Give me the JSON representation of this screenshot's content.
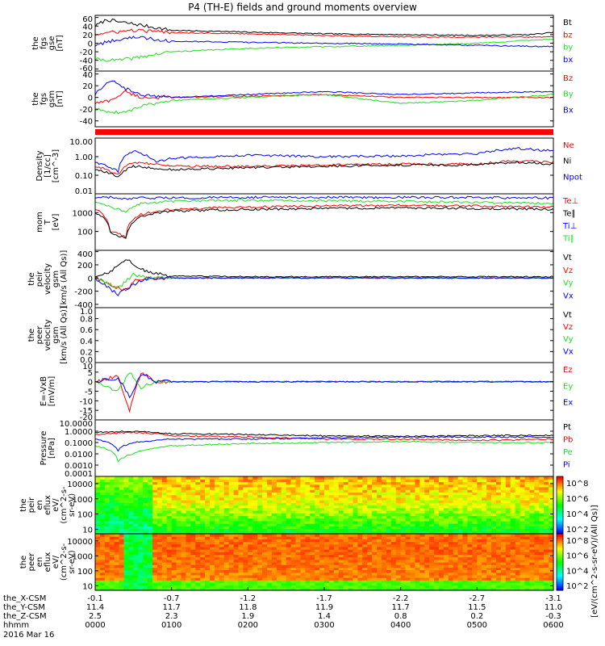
{
  "title": "P4 (TH-E) fields and ground moments overview",
  "footer": "2016 Mar 16",
  "colors": {
    "black": "#000000",
    "red": "#ff0000",
    "green": "#22dd22",
    "blue": "#0000ff"
  },
  "chart_data": {
    "type": "line",
    "time_axis": {
      "row_labels": [
        "the_X-CSM",
        "the_Y-CSM",
        "the_Z-CSM",
        "hhmm"
      ],
      "ticks": [
        {
          "x": "-0.1",
          "y": "11.4",
          "z": "2.5",
          "t": "0000"
        },
        {
          "x": "-0.7",
          "y": "11.7",
          "z": "2.3",
          "t": "0100"
        },
        {
          "x": "-1.2",
          "y": "11.8",
          "z": "1.9",
          "t": "0200"
        },
        {
          "x": "-1.7",
          "y": "11.9",
          "z": "1.4",
          "t": "0300"
        },
        {
          "x": "-2.2",
          "y": "11.7",
          "z": "0.8",
          "t": "0400"
        },
        {
          "x": "-2.7",
          "y": "11.5",
          "z": "0.2",
          "t": "0500"
        },
        {
          "x": "-3.1",
          "y": "11.0",
          "z": "-0.3",
          "t": "0600"
        }
      ]
    },
    "panels": [
      {
        "id": "fgs-gse",
        "ylabel": [
          "the",
          "fgs",
          "gse",
          "[nT]"
        ],
        "scale": "linear",
        "ylim": [
          -65,
          65
        ],
        "ticks": [
          "60",
          "40",
          "20",
          "0",
          "-20",
          "-40",
          "-60"
        ],
        "legend": [
          {
            "name": "Bt",
            "color": "black"
          },
          {
            "name": "bz",
            "color": "red"
          },
          {
            "name": "by",
            "color": "green"
          },
          {
            "name": "bx",
            "color": "blue"
          }
        ],
        "series": [
          {
            "name": "Bt",
            "color": "black",
            "t": [
              0,
              0.1,
              0.15,
              0.3,
              0.5,
              1.0,
              2.0,
              3.0,
              4.0,
              5.0,
              5.7,
              6.0
            ],
            "v": [
              40,
              50,
              55,
              50,
              45,
              30,
              26,
              22,
              20,
              18,
              20,
              25
            ]
          },
          {
            "name": "bz",
            "color": "red",
            "t": [
              0,
              0.2,
              0.5,
              1.0,
              2.0,
              3.0,
              4.0,
              5.0,
              6.0
            ],
            "v": [
              20,
              25,
              30,
              25,
              22,
              18,
              15,
              14,
              15
            ]
          },
          {
            "name": "by",
            "color": "green",
            "t": [
              0,
              0.3,
              0.5,
              1.0,
              2.0,
              3.0,
              4.0,
              5.0,
              6.0
            ],
            "v": [
              -38,
              -40,
              -35,
              -20,
              -12,
              -8,
              -5,
              0,
              10
            ]
          },
          {
            "name": "bx",
            "color": "blue",
            "t": [
              0,
              0.2,
              0.5,
              1.0,
              2.0,
              3.0,
              4.0,
              5.0,
              6.0
            ],
            "v": [
              -5,
              5,
              15,
              5,
              2,
              0,
              -2,
              -5,
              -8
            ]
          }
        ]
      },
      {
        "id": "fgs-gsm",
        "ylabel": [
          "the",
          "fgs",
          "gsm",
          "[nT]"
        ],
        "scale": "linear",
        "ylim": [
          -50,
          45
        ],
        "ticks": [
          "40",
          "20",
          "0",
          "-20",
          "-40"
        ],
        "legend": [
          {
            "name": "Bz",
            "color": "red"
          },
          {
            "name": "By",
            "color": "green"
          },
          {
            "name": "Bx",
            "color": "blue"
          }
        ],
        "series": [
          {
            "name": "Bz",
            "color": "red",
            "t": [
              0,
              0.2,
              0.4,
              0.6,
              1.0,
              2.0,
              3.0,
              4.0,
              5.0,
              6.0
            ],
            "v": [
              -10,
              -5,
              10,
              0,
              0,
              2,
              5,
              0,
              0,
              0
            ]
          },
          {
            "name": "By",
            "color": "green",
            "t": [
              0,
              0.2,
              0.4,
              0.6,
              1.0,
              2.0,
              3.0,
              4.0,
              5.0,
              6.0
            ],
            "v": [
              -20,
              -25,
              -25,
              -15,
              -5,
              0,
              5,
              -10,
              -5,
              5
            ]
          },
          {
            "name": "Bx",
            "color": "blue",
            "t": [
              0,
              0.1,
              0.2,
              0.4,
              0.6,
              1.0,
              2.0,
              3.0,
              4.0,
              5.0,
              6.0
            ],
            "v": [
              5,
              20,
              30,
              15,
              5,
              0,
              5,
              10,
              5,
              8,
              10
            ]
          }
        ]
      },
      {
        "id": "density",
        "ylabel": [
          "Density",
          "[1/cc]",
          "[cm^-3]"
        ],
        "scale": "log",
        "ylim": [
          0.01,
          10
        ],
        "ticks": [
          "10.00",
          "1.00",
          "0.10",
          "0.01"
        ],
        "legend": [
          {
            "name": "Ne",
            "color": "red"
          },
          {
            "name": "Ni",
            "color": "black"
          },
          {
            "name": "Npot",
            "color": "blue"
          }
        ],
        "series": [
          {
            "name": "Npot",
            "color": "blue",
            "t": [
              0,
              0.3,
              0.5,
              0.8,
              1.0,
              2.0,
              3.0,
              4.0,
              4.5,
              5.0,
              5.5,
              6.0
            ],
            "v": [
              0.5,
              0.15,
              2.0,
              0.5,
              0.8,
              1.2,
              1.0,
              1.1,
              1.3,
              1.4,
              2.8,
              2.0
            ]
          },
          {
            "name": "Ne",
            "color": "red",
            "t": [
              0,
              0.3,
              0.5,
              1.0,
              2.0,
              3.0,
              4.0,
              5.0,
              5.5,
              6.0
            ],
            "v": [
              0.3,
              0.1,
              0.5,
              0.3,
              0.3,
              0.35,
              0.4,
              0.4,
              0.6,
              0.5
            ]
          },
          {
            "name": "Ni",
            "color": "black",
            "t": [
              0,
              0.3,
              0.5,
              1.0,
              2.0,
              3.0,
              4.0,
              5.0,
              5.5,
              6.0
            ],
            "v": [
              0.2,
              0.08,
              0.3,
              0.2,
              0.25,
              0.3,
              0.35,
              0.35,
              0.5,
              0.4
            ]
          }
        ]
      },
      {
        "id": "temperature",
        "ylabel": [
          "mom",
          "T",
          "[eV]"
        ],
        "scale": "log",
        "ylim": [
          10,
          10000
        ],
        "ticks": [
          "1000",
          "100"
        ],
        "legend": [
          {
            "name": "Te⊥",
            "color": "red"
          },
          {
            "name": "Te∥",
            "color": "black"
          },
          {
            "name": "Ti⊥",
            "color": "blue"
          },
          {
            "name": "Ti∥",
            "color": "green"
          }
        ],
        "series": [
          {
            "name": "Ti⊥",
            "color": "blue",
            "t": [
              0,
              0.2,
              0.4,
              0.6,
              1.0,
              2.0,
              4.0,
              6.0
            ],
            "v": [
              6000,
              6500,
              5000,
              6000,
              6000,
              6500,
              6500,
              6000
            ]
          },
          {
            "name": "Ti∥",
            "color": "green",
            "t": [
              0,
              0.2,
              0.4,
              0.6,
              1.0,
              2.0,
              4.0,
              6.0
            ],
            "v": [
              4000,
              2000,
              1000,
              3000,
              4000,
              4500,
              4000,
              3000
            ]
          },
          {
            "name": "Te⊥",
            "color": "red",
            "t": [
              0,
              0.2,
              0.4,
              0.6,
              1.0,
              2.0,
              4.0,
              6.0
            ],
            "v": [
              1500,
              100,
              50,
              800,
              1500,
              2000,
              2500,
              2000
            ]
          },
          {
            "name": "Te∥",
            "color": "black",
            "t": [
              0,
              0.2,
              0.4,
              0.6,
              1.0,
              2.0,
              4.0,
              6.0
            ],
            "v": [
              1000,
              80,
              40,
              600,
              1200,
              1500,
              1800,
              1500
            ]
          }
        ]
      },
      {
        "id": "peir-velocity",
        "ylabel": [
          "the",
          "peir",
          "velocity",
          "gsm",
          "[km/s (All Qs)]"
        ],
        "scale": "linear",
        "ylim": [
          -450,
          420
        ],
        "ticks": [
          "400",
          "200",
          "0",
          "-200",
          "-400"
        ],
        "legend": [
          {
            "name": "Vt",
            "color": "black"
          },
          {
            "name": "Vz",
            "color": "red"
          },
          {
            "name": "Vy",
            "color": "green"
          },
          {
            "name": "Vx",
            "color": "blue"
          }
        ],
        "series": [
          {
            "name": "Vt",
            "color": "black",
            "t": [
              0,
              0.2,
              0.4,
              0.5,
              0.7,
              1.0,
              2.0,
              4.0,
              6.0
            ],
            "v": [
              20,
              100,
              300,
              200,
              80,
              30,
              20,
              20,
              20
            ]
          },
          {
            "name": "Vz",
            "color": "red",
            "t": [
              0,
              0.2,
              0.4,
              0.5,
              0.7,
              1.0,
              2.0,
              4.0,
              6.0
            ],
            "v": [
              0,
              -100,
              -200,
              -50,
              0,
              0,
              0,
              0,
              0
            ]
          },
          {
            "name": "Vy",
            "color": "green",
            "t": [
              0,
              0.3,
              0.5,
              0.7,
              1.0,
              6.0
            ],
            "v": [
              0,
              -150,
              50,
              0,
              0,
              0
            ]
          },
          {
            "name": "Vx",
            "color": "blue",
            "t": [
              0,
              0.3,
              0.5,
              0.7,
              1.0,
              6.0
            ],
            "v": [
              0,
              -250,
              -100,
              0,
              0,
              0
            ]
          }
        ]
      },
      {
        "id": "peer-velocity",
        "ylabel": [
          "the",
          "peer",
          "velocity",
          "gsm",
          "[km/s (All Qs)]"
        ],
        "scale": "linear",
        "ylim": [
          0,
          1
        ],
        "ticks": [
          "1.0",
          "0.8",
          "0.6",
          "0.4",
          "0.2",
          "0.0"
        ],
        "legend": [
          {
            "name": "Vt",
            "color": "black"
          },
          {
            "name": "Vz",
            "color": "red"
          },
          {
            "name": "Vy",
            "color": "green"
          },
          {
            "name": "Vx",
            "color": "blue"
          }
        ],
        "series": []
      },
      {
        "id": "e-field",
        "ylabel": [
          "E=-VxB",
          "[mV/m]"
        ],
        "scale": "linear",
        "ylim": [
          -20,
          10
        ],
        "ticks": [
          "10",
          "5",
          "0",
          "-5",
          "-10",
          "-15",
          "-20"
        ],
        "legend": [
          {
            "name": "Ez",
            "color": "red"
          },
          {
            "name": "Ey",
            "color": "green"
          },
          {
            "name": "Ex",
            "color": "blue"
          }
        ],
        "series": [
          {
            "name": "Ez",
            "color": "red",
            "t": [
              0,
              0.3,
              0.45,
              0.6,
              0.8,
              1.0,
              6.0
            ],
            "v": [
              0,
              3,
              -15,
              5,
              0,
              0,
              0
            ]
          },
          {
            "name": "Ey",
            "color": "green",
            "t": [
              0,
              0.3,
              0.45,
              0.6,
              0.8,
              1.0,
              6.0
            ],
            "v": [
              0,
              -5,
              5,
              -3,
              0,
              0,
              0
            ]
          },
          {
            "name": "Ex",
            "color": "blue",
            "t": [
              0,
              0.3,
              0.45,
              0.6,
              0.8,
              1.0,
              6.0
            ],
            "v": [
              0,
              2,
              -8,
              4,
              0,
              0,
              0
            ]
          }
        ]
      },
      {
        "id": "pressure",
        "ylabel": [
          "Pressure",
          "[nPa]"
        ],
        "scale": "log",
        "ylim": [
          0.0001,
          10
        ],
        "ticks": [
          "10.0000",
          "1.0000",
          "0.1000",
          "0.0100",
          "0.0010",
          "0.0001"
        ],
        "legend": [
          {
            "name": "Pt",
            "color": "black"
          },
          {
            "name": "Pb",
            "color": "red"
          },
          {
            "name": "Pe",
            "color": "green"
          },
          {
            "name": "Pi",
            "color": "blue"
          }
        ],
        "series": [
          {
            "name": "Pt",
            "color": "black",
            "t": [
              0,
              0.5,
              1.0,
              2.0,
              3.0,
              4.0,
              5.0,
              6.0
            ],
            "v": [
              0.8,
              1.0,
              0.6,
              0.5,
              0.4,
              0.35,
              0.4,
              0.45
            ]
          },
          {
            "name": "Pb",
            "color": "red",
            "t": [
              0,
              0.5,
              1.0,
              2.0,
              3.0,
              4.0,
              5.0,
              6.0
            ],
            "v": [
              0.5,
              0.8,
              0.4,
              0.3,
              0.2,
              0.2,
              0.15,
              0.2
            ]
          },
          {
            "name": "Pe",
            "color": "green",
            "t": [
              0,
              0.3,
              0.5,
              1.0,
              2.0,
              3.0,
              4.0,
              5.0,
              6.0
            ],
            "v": [
              0.05,
              0.002,
              0.01,
              0.05,
              0.08,
              0.1,
              0.12,
              0.1,
              0.1
            ]
          },
          {
            "name": "Pi",
            "color": "blue",
            "t": [
              0,
              0.3,
              0.5,
              1.0,
              2.0,
              3.0,
              4.0,
              5.0,
              6.0
            ],
            "v": [
              0.2,
              0.02,
              0.1,
              0.2,
              0.2,
              0.25,
              0.3,
              0.3,
              0.3
            ]
          }
        ]
      },
      {
        "id": "peir-eflux",
        "type": "heatmap",
        "ylabel": [
          "the",
          "peir",
          "en",
          "eflux",
          "eV/",
          "(cm^2-s-",
          "sr-eV)"
        ],
        "scale": "log",
        "ylim": [
          5,
          30000
        ],
        "ticks": [
          "10000",
          "1000",
          "100",
          "10"
        ],
        "colorbar": {
          "ticks": [
            "10^8",
            "10^6",
            "10^4",
            "10^2"
          ]
        }
      },
      {
        "id": "peer-eflux",
        "type": "heatmap",
        "ylabel": [
          "the",
          "peer",
          "en",
          "eflux",
          "eV/",
          "(cm^2-s-",
          "sr-eV)"
        ],
        "scale": "log",
        "ylim": [
          5,
          30000
        ],
        "ticks": [
          "10000",
          "1000",
          "100",
          "10"
        ],
        "colorbar": {
          "ticks": [
            "10^8",
            "10^6",
            "10^4",
            "10^2"
          ]
        }
      }
    ],
    "colorbar_label": "[eV/(cm^2-s-sr-eV)/(All Qs)]"
  }
}
